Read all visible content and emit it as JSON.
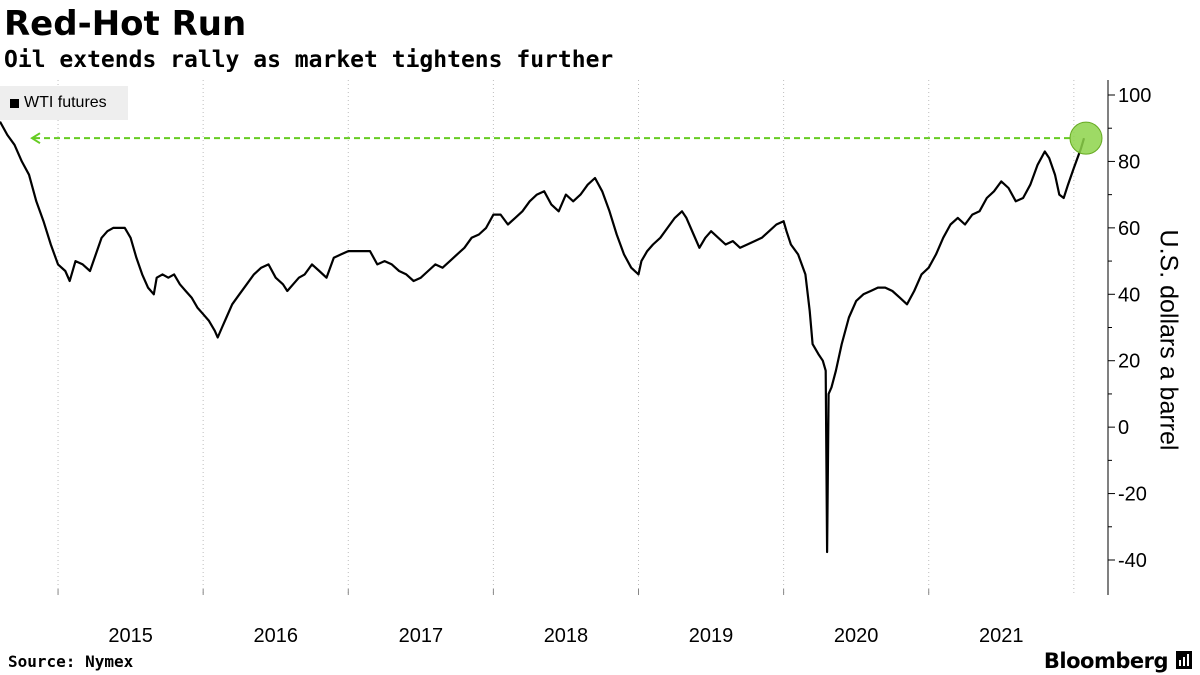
{
  "header": {
    "title": "Red-Hot Run",
    "subtitle": "Oil extends rally as market tightens further"
  },
  "footer": {
    "source": "Source: Nymex",
    "brand": "Bloomberg"
  },
  "chart_data": {
    "type": "line",
    "series": [
      {
        "name": "WTI futures",
        "color": "#000000",
        "points": [
          [
            2014.6,
            92
          ],
          [
            2014.65,
            88
          ],
          [
            2014.7,
            85
          ],
          [
            2014.75,
            80
          ],
          [
            2014.8,
            76
          ],
          [
            2014.85,
            68
          ],
          [
            2014.9,
            62
          ],
          [
            2014.95,
            55
          ],
          [
            2015.0,
            49
          ],
          [
            2015.05,
            47
          ],
          [
            2015.08,
            44
          ],
          [
            2015.12,
            50
          ],
          [
            2015.17,
            49
          ],
          [
            2015.22,
            47
          ],
          [
            2015.26,
            52
          ],
          [
            2015.3,
            57
          ],
          [
            2015.34,
            59
          ],
          [
            2015.38,
            60
          ],
          [
            2015.42,
            60
          ],
          [
            2015.46,
            60
          ],
          [
            2015.5,
            57
          ],
          [
            2015.54,
            51
          ],
          [
            2015.58,
            46
          ],
          [
            2015.62,
            42
          ],
          [
            2015.66,
            40
          ],
          [
            2015.68,
            45
          ],
          [
            2015.72,
            46
          ],
          [
            2015.76,
            45
          ],
          [
            2015.8,
            46
          ],
          [
            2015.84,
            43
          ],
          [
            2015.88,
            41
          ],
          [
            2015.92,
            39
          ],
          [
            2015.96,
            36
          ],
          [
            2016.0,
            34
          ],
          [
            2016.04,
            32
          ],
          [
            2016.08,
            29
          ],
          [
            2016.1,
            27
          ],
          [
            2016.13,
            30
          ],
          [
            2016.16,
            33
          ],
          [
            2016.2,
            37
          ],
          [
            2016.25,
            40
          ],
          [
            2016.3,
            43
          ],
          [
            2016.35,
            46
          ],
          [
            2016.4,
            48
          ],
          [
            2016.45,
            49
          ],
          [
            2016.5,
            45
          ],
          [
            2016.55,
            43
          ],
          [
            2016.58,
            41
          ],
          [
            2016.62,
            43
          ],
          [
            2016.66,
            45
          ],
          [
            2016.7,
            46
          ],
          [
            2016.75,
            49
          ],
          [
            2016.8,
            47
          ],
          [
            2016.85,
            45
          ],
          [
            2016.9,
            51
          ],
          [
            2016.95,
            52
          ],
          [
            2017.0,
            53
          ],
          [
            2017.05,
            53
          ],
          [
            2017.1,
            53
          ],
          [
            2017.15,
            53
          ],
          [
            2017.2,
            49
          ],
          [
            2017.25,
            50
          ],
          [
            2017.3,
            49
          ],
          [
            2017.35,
            47
          ],
          [
            2017.4,
            46
          ],
          [
            2017.45,
            44
          ],
          [
            2017.5,
            45
          ],
          [
            2017.55,
            47
          ],
          [
            2017.6,
            49
          ],
          [
            2017.65,
            48
          ],
          [
            2017.7,
            50
          ],
          [
            2017.75,
            52
          ],
          [
            2017.8,
            54
          ],
          [
            2017.85,
            57
          ],
          [
            2017.9,
            58
          ],
          [
            2017.95,
            60
          ],
          [
            2018.0,
            64
          ],
          [
            2018.05,
            64
          ],
          [
            2018.1,
            61
          ],
          [
            2018.15,
            63
          ],
          [
            2018.2,
            65
          ],
          [
            2018.25,
            68
          ],
          [
            2018.3,
            70
          ],
          [
            2018.35,
            71
          ],
          [
            2018.4,
            67
          ],
          [
            2018.45,
            65
          ],
          [
            2018.5,
            70
          ],
          [
            2018.55,
            68
          ],
          [
            2018.6,
            70
          ],
          [
            2018.65,
            73
          ],
          [
            2018.7,
            75
          ],
          [
            2018.75,
            71
          ],
          [
            2018.8,
            65
          ],
          [
            2018.85,
            58
          ],
          [
            2018.9,
            52
          ],
          [
            2018.95,
            48
          ],
          [
            2019.0,
            46
          ],
          [
            2019.02,
            50
          ],
          [
            2019.06,
            53
          ],
          [
            2019.1,
            55
          ],
          [
            2019.15,
            57
          ],
          [
            2019.2,
            60
          ],
          [
            2019.25,
            63
          ],
          [
            2019.3,
            65
          ],
          [
            2019.33,
            63
          ],
          [
            2019.38,
            58
          ],
          [
            2019.42,
            54
          ],
          [
            2019.46,
            57
          ],
          [
            2019.5,
            59
          ],
          [
            2019.55,
            57
          ],
          [
            2019.6,
            55
          ],
          [
            2019.65,
            56
          ],
          [
            2019.7,
            54
          ],
          [
            2019.75,
            55
          ],
          [
            2019.8,
            56
          ],
          [
            2019.85,
            57
          ],
          [
            2019.9,
            59
          ],
          [
            2019.95,
            61
          ],
          [
            2020.0,
            62
          ],
          [
            2020.02,
            59
          ],
          [
            2020.05,
            55
          ],
          [
            2020.1,
            52
          ],
          [
            2020.15,
            46
          ],
          [
            2020.18,
            35
          ],
          [
            2020.2,
            25
          ],
          [
            2020.24,
            22
          ],
          [
            2020.27,
            20
          ],
          [
            2020.29,
            17
          ],
          [
            2020.3,
            -37.6
          ],
          [
            2020.31,
            10
          ],
          [
            2020.33,
            12
          ],
          [
            2020.36,
            17
          ],
          [
            2020.4,
            25
          ],
          [
            2020.45,
            33
          ],
          [
            2020.5,
            38
          ],
          [
            2020.55,
            40
          ],
          [
            2020.6,
            41
          ],
          [
            2020.65,
            42
          ],
          [
            2020.7,
            42
          ],
          [
            2020.75,
            41
          ],
          [
            2020.8,
            39
          ],
          [
            2020.85,
            37
          ],
          [
            2020.9,
            41
          ],
          [
            2020.95,
            46
          ],
          [
            2021.0,
            48
          ],
          [
            2021.05,
            52
          ],
          [
            2021.1,
            57
          ],
          [
            2021.15,
            61
          ],
          [
            2021.2,
            63
          ],
          [
            2021.25,
            61
          ],
          [
            2021.3,
            64
          ],
          [
            2021.35,
            65
          ],
          [
            2021.4,
            69
          ],
          [
            2021.45,
            71
          ],
          [
            2021.5,
            74
          ],
          [
            2021.55,
            72
          ],
          [
            2021.6,
            68
          ],
          [
            2021.65,
            69
          ],
          [
            2021.7,
            73
          ],
          [
            2021.75,
            79
          ],
          [
            2021.8,
            83
          ],
          [
            2021.83,
            81
          ],
          [
            2021.87,
            76
          ],
          [
            2021.9,
            70
          ],
          [
            2021.93,
            69
          ],
          [
            2021.96,
            73
          ],
          [
            2022.0,
            78
          ],
          [
            2022.05,
            84
          ],
          [
            2022.07,
            87
          ]
        ]
      }
    ],
    "annotations": {
      "reference_value": 87,
      "reference_color": "#66cc22",
      "highlight_color": "#8dd44a"
    },
    "x_ticks": [
      "2015",
      "2016",
      "2017",
      "2018",
      "2019",
      "2020",
      "2021"
    ],
    "y_ticks": [
      100,
      80,
      60,
      40,
      20,
      0,
      -20,
      -40
    ],
    "xlim": [
      2014.6,
      2022.07
    ],
    "ylim": [
      -50,
      103
    ],
    "ylabel": "U.S. dollars a barrel",
    "legend_position": "top-left",
    "grid": "vertical dotted"
  }
}
